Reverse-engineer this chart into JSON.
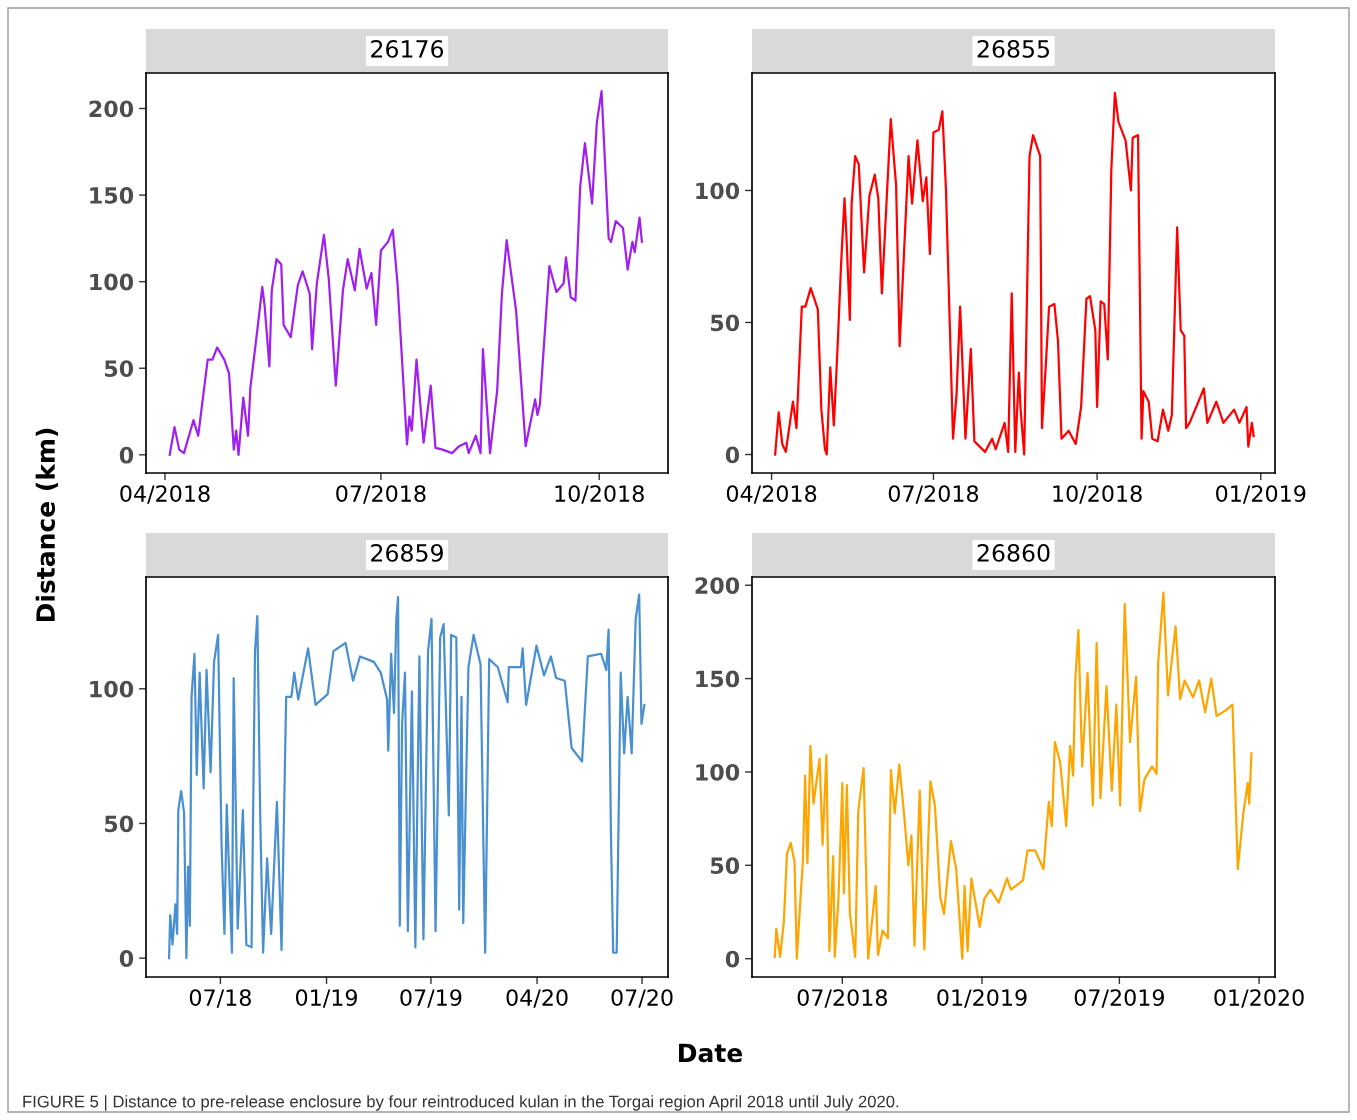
{
  "chart_data": [
    {
      "type": "line",
      "title": "26176",
      "ylabel": "Distance (km)",
      "color": "#a020f0",
      "x": [
        "2018-04-03",
        "2018-04-05",
        "2018-04-07",
        "2018-04-09",
        "2018-04-13",
        "2018-04-15",
        "2018-04-19",
        "2018-04-21",
        "2018-04-23",
        "2018-04-26",
        "2018-04-28",
        "2018-04-30",
        "2018-05-01",
        "2018-05-02",
        "2018-05-04",
        "2018-05-06",
        "2018-05-07",
        "2018-05-10",
        "2018-05-12",
        "2018-05-13",
        "2018-05-15",
        "2018-05-16",
        "2018-05-18",
        "2018-05-20",
        "2018-05-21",
        "2018-05-24",
        "2018-05-27",
        "2018-05-29",
        "2018-06-01",
        "2018-06-02",
        "2018-06-04",
        "2018-06-07",
        "2018-06-09",
        "2018-06-12",
        "2018-06-15",
        "2018-06-17",
        "2018-06-20",
        "2018-06-22",
        "2018-06-25",
        "2018-06-27",
        "2018-06-29",
        "2018-07-01",
        "2018-07-04",
        "2018-07-06",
        "2018-07-08",
        "2018-07-12",
        "2018-07-13",
        "2018-07-14",
        "2018-07-16",
        "2018-07-19",
        "2018-07-22",
        "2018-07-24",
        "2018-07-27",
        "2018-07-31",
        "2018-08-03",
        "2018-08-06",
        "2018-08-07",
        "2018-08-10",
        "2018-08-12",
        "2018-08-13",
        "2018-08-16",
        "2018-08-19",
        "2018-08-21",
        "2018-08-23",
        "2018-08-27",
        "2018-08-31",
        "2018-09-04",
        "2018-09-05",
        "2018-09-06",
        "2018-09-10",
        "2018-09-13",
        "2018-09-16",
        "2018-09-17",
        "2018-09-19",
        "2018-09-21",
        "2018-09-23",
        "2018-09-25",
        "2018-09-28",
        "2018-09-30",
        "2018-10-02",
        "2018-10-05",
        "2018-10-06",
        "2018-10-08",
        "2018-10-11",
        "2018-10-13",
        "2018-10-15",
        "2018-10-16",
        "2018-10-18",
        "2018-10-19"
      ],
      "values": [
        0,
        16,
        3,
        1,
        20,
        11,
        55,
        55,
        62,
        55,
        47,
        3,
        14,
        0,
        33,
        11,
        39,
        73,
        97,
        86,
        51,
        95,
        113,
        110,
        75,
        68,
        98,
        106,
        93,
        61,
        99,
        127,
        102,
        40,
        95,
        113,
        95,
        119,
        96,
        105,
        75,
        118,
        123,
        130,
        99,
        6,
        22,
        14,
        55,
        7,
        40,
        4,
        3,
        1,
        5,
        7,
        1,
        11,
        1,
        61,
        1,
        37,
        93,
        124,
        83,
        5,
        32,
        23,
        29,
        109,
        94,
        99,
        114,
        91,
        89,
        155,
        180,
        145,
        192,
        210,
        125,
        123,
        135,
        131,
        107,
        123,
        117,
        137,
        123
      ],
      "xlim": [
        "2018-03-24",
        "2018-10-30"
      ],
      "ylim": [
        -10.5,
        220.5
      ],
      "yticks": [
        0,
        50,
        100,
        150,
        200
      ],
      "xticks": [
        {
          "value": "2018-04-01",
          "label": "04/2018"
        },
        {
          "value": "2018-07-01",
          "label": "07/2018"
        },
        {
          "value": "2018-10-01",
          "label": "10/2018"
        }
      ]
    },
    {
      "type": "line",
      "title": "26855",
      "color": "#ff0000",
      "x": [
        "2018-04-03",
        "2018-04-05",
        "2018-04-07",
        "2018-04-09",
        "2018-04-13",
        "2018-04-15",
        "2018-04-18",
        "2018-04-20",
        "2018-04-23",
        "2018-04-27",
        "2018-04-29",
        "2018-05-01",
        "2018-05-02",
        "2018-05-04",
        "2018-05-06",
        "2018-05-08",
        "2018-05-10",
        "2018-05-12",
        "2018-05-13",
        "2018-05-15",
        "2018-05-16",
        "2018-05-18",
        "2018-05-20",
        "2018-05-23",
        "2018-05-26",
        "2018-05-29",
        "2018-05-31",
        "2018-06-02",
        "2018-06-07",
        "2018-06-10",
        "2018-06-12",
        "2018-06-17",
        "2018-06-19",
        "2018-06-22",
        "2018-06-25",
        "2018-06-27",
        "2018-06-29",
        "2018-07-01",
        "2018-07-04",
        "2018-07-06",
        "2018-07-08",
        "2018-07-12",
        "2018-07-14",
        "2018-07-16",
        "2018-07-19",
        "2018-07-22",
        "2018-07-24",
        "2018-07-30",
        "2018-08-03",
        "2018-08-05",
        "2018-08-10",
        "2018-08-12",
        "2018-08-14",
        "2018-08-16",
        "2018-08-18",
        "2018-08-19",
        "2018-08-21",
        "2018-08-24",
        "2018-08-26",
        "2018-08-30",
        "2018-08-31",
        "2018-09-02",
        "2018-09-04",
        "2018-09-07",
        "2018-09-09",
        "2018-09-11",
        "2018-09-15",
        "2018-09-19",
        "2018-09-22",
        "2018-09-25",
        "2018-09-27",
        "2018-09-30",
        "2018-10-01",
        "2018-10-03",
        "2018-10-05",
        "2018-10-07",
        "2018-10-09",
        "2018-10-11",
        "2018-10-13",
        "2018-10-17",
        "2018-10-20",
        "2018-10-21",
        "2018-10-24",
        "2018-10-26",
        "2018-10-27",
        "2018-10-30",
        "2018-11-01",
        "2018-11-04",
        "2018-11-07",
        "2018-11-10",
        "2018-11-12",
        "2018-11-15",
        "2018-11-17",
        "2018-11-19",
        "2018-11-20",
        "2018-11-22",
        "2018-11-30",
        "2018-12-02",
        "2018-12-07",
        "2018-12-11",
        "2018-12-17",
        "2018-12-20",
        "2018-12-24",
        "2018-12-25",
        "2018-12-27",
        "2018-12-28"
      ],
      "values": [
        0,
        16,
        4,
        1,
        20,
        10,
        56,
        56,
        63,
        55,
        17,
        2,
        0,
        33,
        11,
        39,
        71,
        97,
        84,
        51,
        95,
        113,
        110,
        69,
        98,
        106,
        97,
        61,
        127,
        102,
        41,
        113,
        95,
        119,
        96,
        105,
        76,
        122,
        123,
        130,
        101,
        6,
        23,
        56,
        6,
        40,
        5,
        1,
        6,
        2,
        12,
        1,
        61,
        1,
        31,
        17,
        0,
        113,
        121,
        113,
        10,
        32,
        56,
        57,
        43,
        6,
        9,
        4,
        18,
        59,
        60,
        47,
        18,
        58,
        57,
        36,
        108,
        137,
        126,
        119,
        100,
        120,
        121,
        6,
        24,
        20,
        6,
        5,
        17,
        9,
        15,
        86,
        47,
        45,
        10,
        12,
        25,
        12,
        20,
        12,
        17,
        12,
        18,
        3,
        12,
        7
      ],
      "xlim": [
        "2018-03-21",
        "2019-01-09"
      ],
      "ylim": [
        -7,
        144.5
      ],
      "yticks": [
        0,
        50,
        100
      ],
      "xticks": [
        {
          "value": "2018-04-01",
          "label": "04/2018"
        },
        {
          "value": "2018-07-01",
          "label": "07/2018"
        },
        {
          "value": "2018-10-01",
          "label": "10/2018"
        },
        {
          "value": "2019-01-01",
          "label": "01/2019"
        }
      ]
    },
    {
      "type": "line",
      "title": "26859",
      "xlabel": "Date",
      "color": "#4a90d0",
      "annotations": [
        "FIGURE 5 | Distance to pre-release enclosure by four reintroduced kulan in the Torgai region April 2018 until July 2020."
      ],
      "x": [
        "2018-04-03",
        "2018-04-05",
        "2018-04-09",
        "2018-04-14",
        "2018-04-17",
        "2018-04-19",
        "2018-04-24",
        "2018-04-29",
        "2018-05-03",
        "2018-05-06",
        "2018-05-09",
        "2018-05-12",
        "2018-05-17",
        "2018-05-21",
        "2018-05-26",
        "2018-06-02",
        "2018-06-07",
        "2018-06-14",
        "2018-06-20",
        "2018-06-27",
        "2018-07-03",
        "2018-07-08",
        "2018-07-12",
        "2018-07-21",
        "2018-07-24",
        "2018-07-31",
        "2018-08-09",
        "2018-08-15",
        "2018-08-24",
        "2018-08-30",
        "2018-09-03",
        "2018-09-08",
        "2018-09-13",
        "2018-09-20",
        "2018-09-27",
        "2018-10-07",
        "2018-10-15",
        "2018-10-23",
        "2018-11-01",
        "2018-11-06",
        "2018-11-13",
        "2018-11-30",
        "2018-12-13",
        "2019-01-03",
        "2019-01-13",
        "2019-02-03",
        "2019-02-16",
        "2019-02-28",
        "2019-03-24",
        "2019-04-05",
        "2019-04-16",
        "2019-04-18",
        "2019-04-23",
        "2019-04-28",
        "2019-05-02",
        "2019-05-05",
        "2019-05-08",
        "2019-05-12",
        "2019-05-17",
        "2019-05-22",
        "2019-05-29",
        "2019-06-04",
        "2019-06-11",
        "2019-06-18",
        "2019-06-26",
        "2019-07-02",
        "2019-07-09",
        "2019-07-17",
        "2019-07-23",
        "2019-08-01",
        "2019-08-05",
        "2019-08-14",
        "2019-08-19",
        "2019-08-23",
        "2019-08-26",
        "2019-09-04",
        "2019-09-13",
        "2019-09-25",
        "2019-10-03",
        "2019-10-10",
        "2019-10-25",
        "2019-11-11",
        "2019-11-13",
        "2019-12-04",
        "2019-12-07",
        "2019-12-13",
        "2019-12-31",
        "2020-01-13",
        "2020-01-25",
        "2020-02-03",
        "2020-02-18",
        "2020-03-01",
        "2020-03-19",
        "2020-03-29",
        "2020-04-21",
        "2020-04-30",
        "2020-05-04",
        "2020-05-08",
        "2020-05-12",
        "2020-05-18",
        "2020-05-25",
        "2020-05-31",
        "2020-06-06",
        "2020-06-13",
        "2020-06-20",
        "2020-06-26",
        "2020-06-30",
        "2020-07-05"
      ],
      "values": [
        0,
        16,
        5,
        20,
        9,
        55,
        62,
        54,
        0,
        34,
        12,
        97,
        113,
        68,
        106,
        63,
        107,
        69,
        110,
        120,
        42,
        9,
        57,
        2,
        104,
        11,
        55,
        5,
        4,
        114,
        127,
        53,
        2,
        37,
        9,
        58,
        3,
        97,
        97,
        106,
        96,
        115,
        94,
        98,
        114,
        117,
        103,
        112,
        110,
        106,
        96,
        77,
        113,
        91,
        126,
        134,
        12,
        87,
        106,
        10,
        99,
        4,
        112,
        7,
        114,
        126,
        10,
        119,
        124,
        53,
        120,
        119,
        18,
        97,
        13,
        108,
        120,
        109,
        2,
        111,
        108,
        95,
        108,
        108,
        115,
        94,
        116,
        105,
        112,
        104,
        103,
        78,
        73,
        112,
        113,
        107,
        122,
        47,
        2,
        2,
        106,
        76,
        97,
        76,
        126,
        135,
        87,
        94
      ],
      "xlim": [
        "2018-02-22",
        "2020-08-15"
      ],
      "ylim": [
        -7,
        141.5
      ],
      "yticks": [
        0,
        50,
        100
      ],
      "xticks": [
        {
          "value": "2018-07-01",
          "label": "07/18"
        },
        {
          "value": "2019-01-01",
          "label": "01/19"
        },
        {
          "value": "2019-07-01",
          "label": "07/19"
        },
        {
          "value": "2020-01-01",
          "label": "04/20"
        },
        {
          "value": "2020-07-01",
          "label": "07/20"
        }
      ]
    },
    {
      "type": "line",
      "title": "26860",
      "color": "#ffa500",
      "x": [
        "2018-04-03",
        "2018-04-05",
        "2018-04-10",
        "2018-04-15",
        "2018-04-19",
        "2018-04-24",
        "2018-04-29",
        "2018-05-02",
        "2018-05-07",
        "2018-05-10",
        "2018-05-13",
        "2018-05-16",
        "2018-05-20",
        "2018-05-24",
        "2018-06-01",
        "2018-06-05",
        "2018-06-10",
        "2018-06-14",
        "2018-06-19",
        "2018-06-21",
        "2018-06-26",
        "2018-07-01",
        "2018-07-03",
        "2018-07-07",
        "2018-07-11",
        "2018-07-18",
        "2018-07-22",
        "2018-07-29",
        "2018-08-04",
        "2018-08-14",
        "2018-08-17",
        "2018-08-23",
        "2018-08-30",
        "2018-09-03",
        "2018-09-08",
        "2018-09-14",
        "2018-09-20",
        "2018-09-26",
        "2018-09-30",
        "2018-10-04",
        "2018-10-11",
        "2018-10-17",
        "2018-10-25",
        "2018-10-31",
        "2018-11-07",
        "2018-11-12",
        "2018-11-21",
        "2018-11-28",
        "2018-12-06",
        "2018-12-09",
        "2018-12-13",
        "2018-12-18",
        "2018-12-29",
        "2019-01-04",
        "2019-01-12",
        "2019-01-23",
        "2019-02-03",
        "2019-02-08",
        "2019-02-24",
        "2019-03-02",
        "2019-03-12",
        "2019-03-23",
        "2019-03-30",
        "2019-04-03",
        "2019-04-07",
        "2019-04-14",
        "2019-04-22",
        "2019-04-27",
        "2019-05-01",
        "2019-05-04",
        "2019-05-08",
        "2019-05-13",
        "2019-05-20",
        "2019-05-27",
        "2019-06-01",
        "2019-06-06",
        "2019-06-14",
        "2019-06-21",
        "2019-06-27",
        "2019-07-02",
        "2019-07-08",
        "2019-07-15",
        "2019-07-23",
        "2019-07-28",
        "2019-08-03",
        "2019-08-13",
        "2019-08-19",
        "2019-08-21",
        "2019-08-28",
        "2019-09-03",
        "2019-09-13",
        "2019-09-19",
        "2019-09-25",
        "2019-10-06",
        "2019-10-14",
        "2019-10-22",
        "2019-10-30",
        "2019-11-06",
        "2019-11-18",
        "2019-11-27",
        "2019-12-04",
        "2019-12-11",
        "2019-12-17",
        "2019-12-19",
        "2019-12-22"
      ],
      "values": [
        1,
        16,
        1,
        20,
        56,
        62,
        52,
        0,
        33,
        52,
        98,
        51,
        114,
        83,
        107,
        61,
        109,
        4,
        55,
        1,
        33,
        94,
        35,
        93,
        24,
        1,
        79,
        102,
        0,
        39,
        2,
        15,
        11,
        101,
        78,
        104,
        79,
        50,
        66,
        7,
        90,
        5,
        95,
        82,
        33,
        24,
        63,
        48,
        0,
        39,
        4,
        43,
        17,
        32,
        37,
        30,
        43,
        37,
        42,
        58,
        58,
        48,
        84,
        71,
        116,
        105,
        71,
        114,
        98,
        150,
        176,
        103,
        153,
        82,
        169,
        86,
        146,
        90,
        136,
        82,
        190,
        116,
        151,
        79,
        96,
        103,
        99,
        158,
        196,
        141,
        178,
        139,
        149,
        140,
        149,
        132,
        150,
        130,
        133,
        136,
        48,
        77,
        94,
        83,
        110
      ],
      "xlim": [
        "2018-03-04",
        "2020-01-22"
      ],
      "ylim": [
        -9.8,
        204.4
      ],
      "yticks": [
        0,
        50,
        100,
        150,
        200
      ],
      "xticks": [
        {
          "value": "2018-07-01",
          "label": "07/2018"
        },
        {
          "value": "2019-01-01",
          "label": "01/2019"
        },
        {
          "value": "2019-07-01",
          "label": "07/2019"
        },
        {
          "value": "2020-01-01",
          "label": "01/2020"
        }
      ]
    }
  ]
}
